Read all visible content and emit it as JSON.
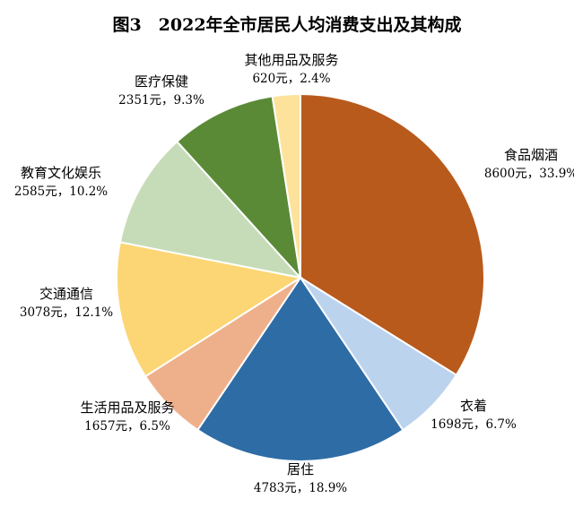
{
  "chart_data": {
    "type": "pie",
    "title": "图3　2022年全市居民人均消费支出及其构成",
    "unit": "元",
    "slices": [
      {
        "name": "食品烟酒",
        "value": 8600,
        "percent_label": "33.9%",
        "value_label": "8600元，33.9%",
        "color": "#b85a1c"
      },
      {
        "name": "衣着",
        "value": 1698,
        "percent_label": "6.7%",
        "value_label": "1698元，6.7%",
        "color": "#bcd3ee"
      },
      {
        "name": "居住",
        "value": 4783,
        "percent_label": "18.9%",
        "value_label": "4783元，18.9%",
        "color": "#2e6ca6"
      },
      {
        "name": "生活用品及服务",
        "value": 1657,
        "percent_label": "6.5%",
        "value_label": "1657元，6.5%",
        "color": "#eeb08a"
      },
      {
        "name": "交通通信",
        "value": 3078,
        "percent_label": "12.1%",
        "value_label": "3078元，12.1%",
        "color": "#fcd674"
      },
      {
        "name": "教育文化娱乐",
        "value": 2585,
        "percent_label": "10.2%",
        "value_label": "2585元，10.2%",
        "color": "#c6dcb8"
      },
      {
        "name": "医疗保健",
        "value": 2351,
        "percent_label": "9.3%",
        "value_label": "2351元，9.3%",
        "color": "#5a8a36"
      },
      {
        "name": "其他用品及服务",
        "value": 620,
        "percent_label": "2.4%",
        "value_label": "620元，2.4%",
        "color": "#fde29b"
      }
    ]
  }
}
